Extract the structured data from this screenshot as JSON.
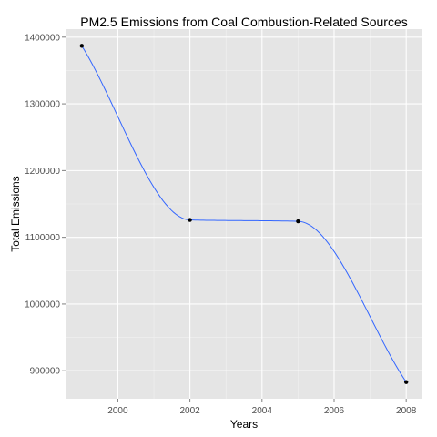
{
  "chart_data": {
    "type": "line",
    "title": "PM2.5 Emissions from Coal Combustion-Related Sources",
    "xlabel": "Years",
    "ylabel": "Total Emissions",
    "x": [
      1999,
      2002,
      2005,
      2008
    ],
    "series": [
      {
        "values": [
          1387000,
          1126000,
          1124000,
          883000
        ],
        "smoothed": true
      }
    ],
    "xlim": [
      1998.55,
      2008.45
    ],
    "ylim": [
      858000,
      1412000
    ],
    "x_ticks": [
      2000,
      2002,
      2004,
      2006,
      2008
    ],
    "x_tick_labels": [
      "2000",
      "2002",
      "2004",
      "2006",
      "2008"
    ],
    "y_ticks": [
      900000,
      1000000,
      1100000,
      1200000,
      1300000,
      1400000
    ],
    "y_tick_labels": [
      "900000",
      "1000000",
      "1100000",
      "1200000",
      "1300000",
      "1400000"
    ],
    "grid": true,
    "panel_background": "#e5e5e5",
    "grid_color": "#ffffff",
    "line_color": "#3366ff",
    "point_color": "#000000"
  }
}
